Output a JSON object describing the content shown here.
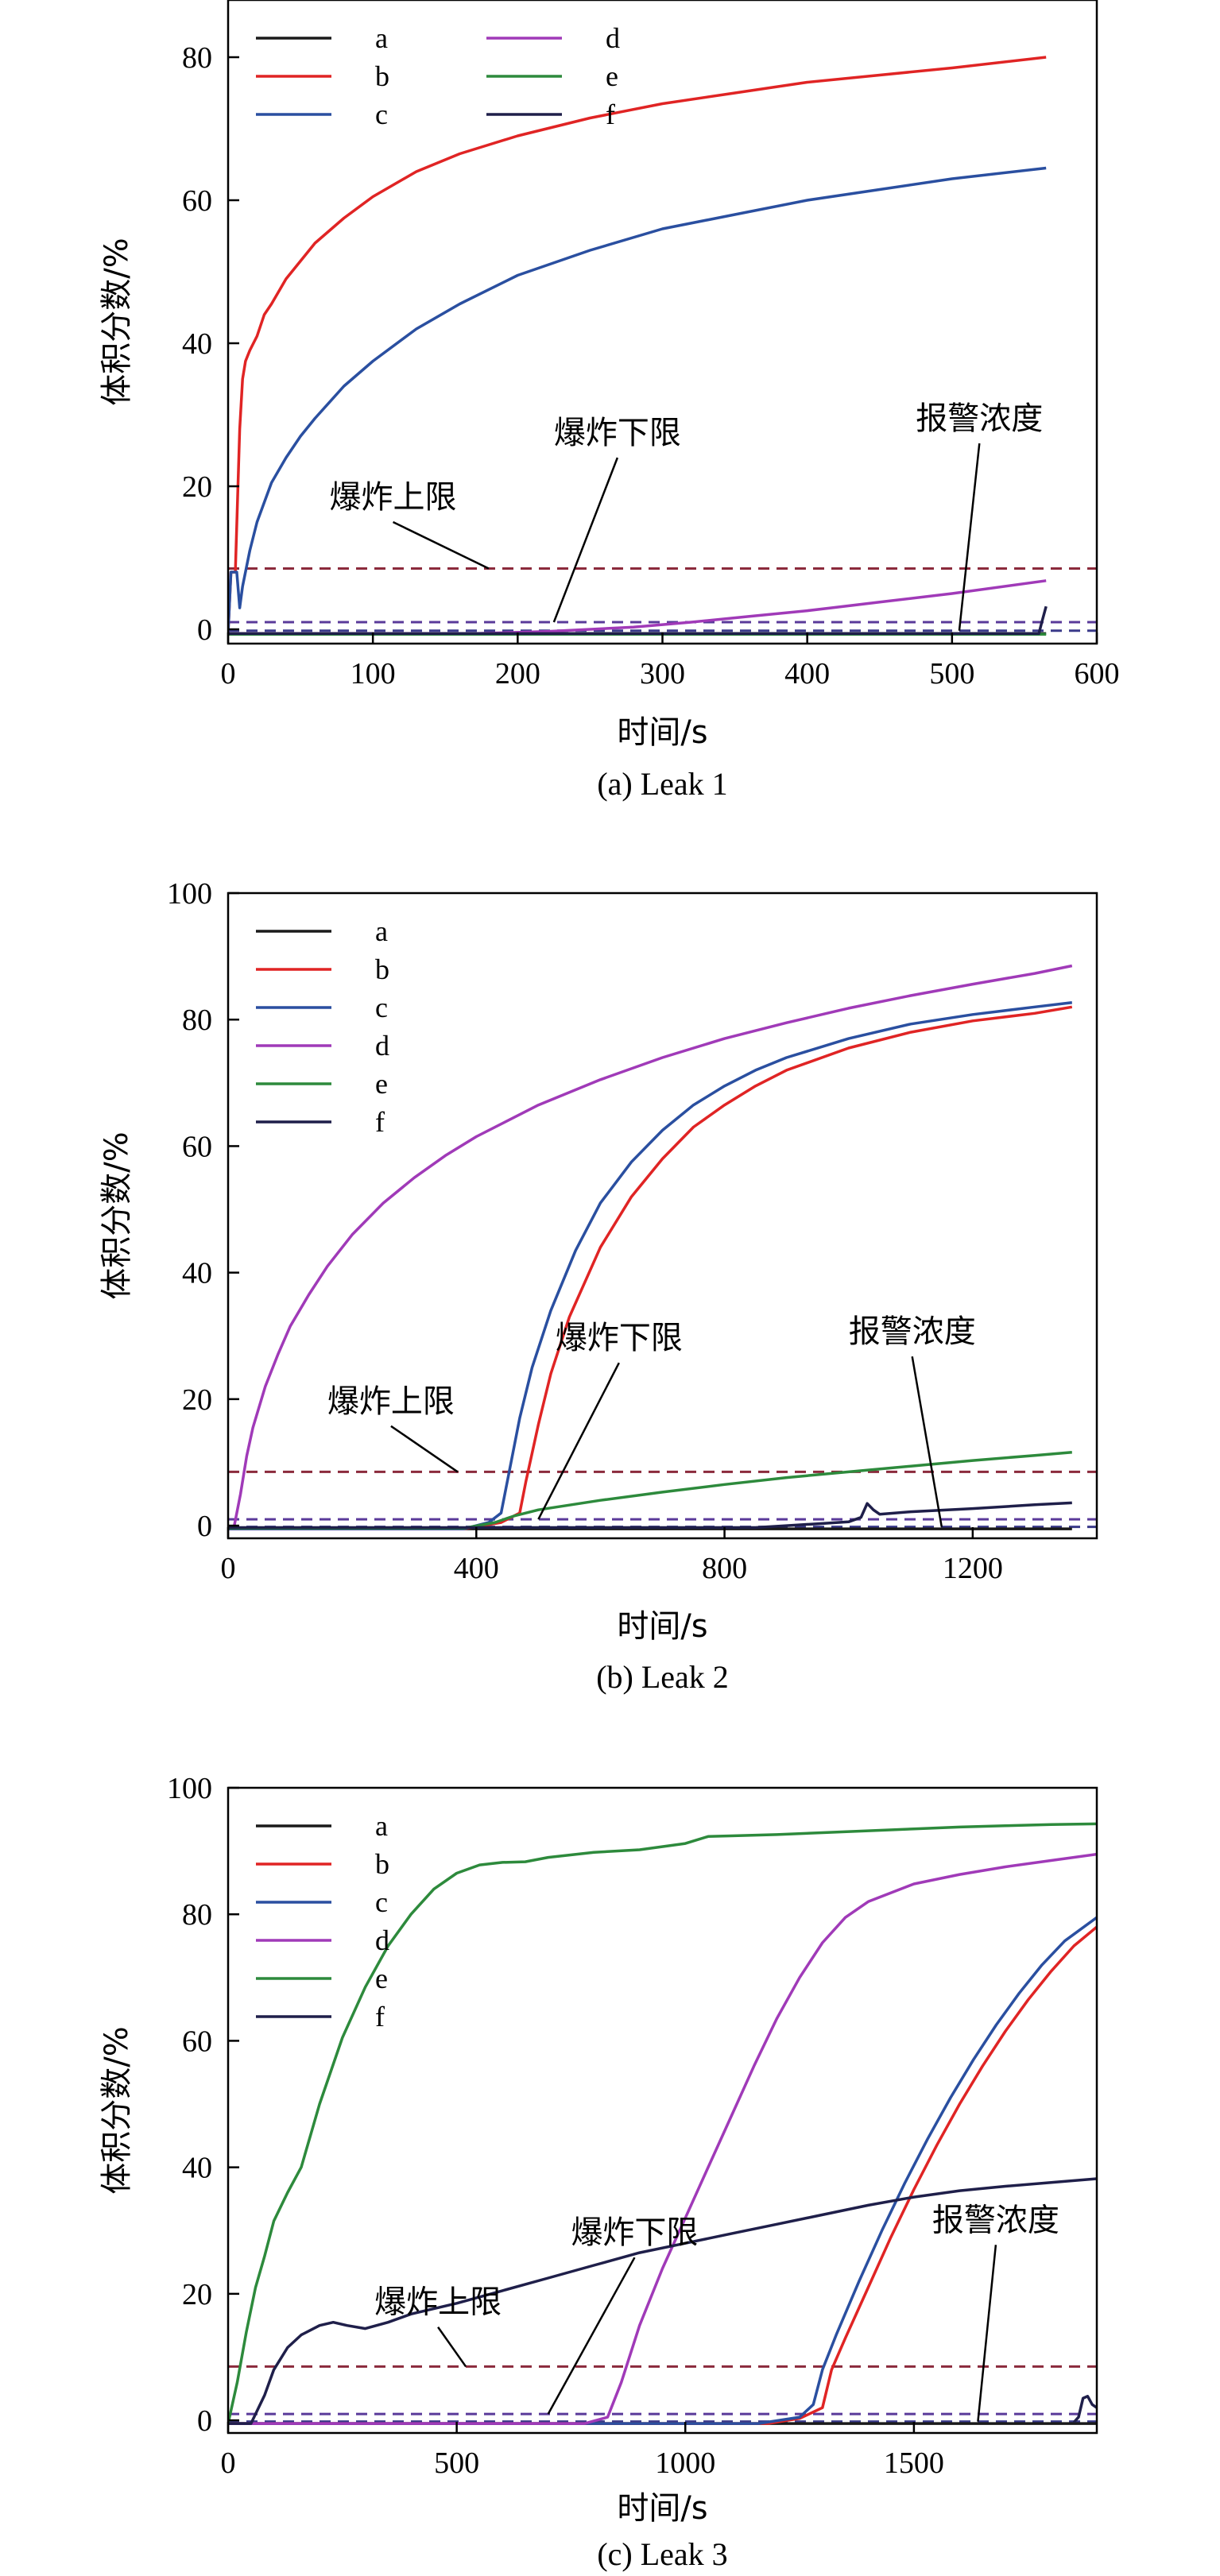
{
  "chart_data": [
    {
      "type": "line",
      "caption": "(a) Leak 1",
      "xlabel": "时间/s",
      "ylabel": "体积分数/%",
      "xlim": [
        0,
        600
      ],
      "ylim": [
        -2,
        88
      ],
      "xticks": [
        0,
        100,
        200,
        300,
        400,
        500,
        600
      ],
      "yticks": [
        0,
        20,
        40,
        60,
        80
      ],
      "legend": {
        "columns": 2,
        "placement": "top-left"
      },
      "series": [
        {
          "name": "a",
          "color": "#1a1a1a",
          "x": [
            0,
            565
          ],
          "y": [
            -0.6,
            -0.6
          ]
        },
        {
          "name": "b",
          "color": "#e02424",
          "x": [
            0,
            2,
            5,
            8,
            10,
            12,
            15,
            20,
            25,
            30,
            40,
            50,
            60,
            80,
            100,
            130,
            160,
            200,
            250,
            300,
            350,
            400,
            450,
            500,
            565
          ],
          "y": [
            -0.5,
            8,
            8,
            28,
            35,
            37.5,
            39,
            41,
            44,
            45.5,
            49,
            51.5,
            54,
            57.5,
            60.5,
            64,
            66.5,
            69,
            71.5,
            73.5,
            75,
            76.5,
            77.5,
            78.5,
            80
          ]
        },
        {
          "name": "c",
          "color": "#2a4fa0",
          "x": [
            0,
            2,
            4,
            6,
            8,
            10,
            15,
            20,
            30,
            40,
            50,
            60,
            80,
            100,
            130,
            160,
            200,
            250,
            300,
            350,
            400,
            450,
            500,
            565
          ],
          "y": [
            -0.5,
            8,
            8,
            8,
            3,
            6,
            11,
            15,
            20.5,
            24,
            27,
            29.5,
            34,
            37.5,
            42,
            45.5,
            49.5,
            53,
            56,
            58,
            60,
            61.5,
            63,
            64.5
          ]
        },
        {
          "name": "d",
          "color": "#a03ab8",
          "x": [
            0,
            170,
            220,
            280,
            320,
            360,
            400,
            450,
            500,
            565
          ],
          "y": [
            -0.6,
            -0.6,
            -0.3,
            0.3,
            1,
            1.8,
            2.6,
            3.8,
            5,
            6.8
          ]
        },
        {
          "name": "e",
          "color": "#2d8a3c",
          "x": [
            0,
            565
          ],
          "y": [
            -0.7,
            -0.7
          ]
        },
        {
          "name": "f",
          "color": "#1f1f4a",
          "x": [
            0,
            560,
            562,
            565
          ],
          "y": [
            -0.6,
            -0.6,
            1,
            3.2
          ]
        }
      ],
      "hlines": [
        {
          "y": 8.5,
          "color": "#8b2a3c"
        },
        {
          "y": 1,
          "color": "#5a3a9a"
        },
        {
          "y": -0.2,
          "color": "#3a3a8a"
        }
      ],
      "annotations": [
        {
          "text": "爆炸上限",
          "at": [
            180,
            8.5
          ],
          "text_at": [
            70,
            17
          ],
          "anchor": "start"
        },
        {
          "text": "爆炸下限",
          "at": [
            225,
            1
          ],
          "text_at": [
            225,
            26
          ],
          "anchor": "start"
        },
        {
          "text": "报警浓度",
          "at": [
            505,
            -0.2
          ],
          "text_at": [
            475,
            28
          ],
          "anchor": "start"
        }
      ]
    },
    {
      "type": "line",
      "caption": "(b) Leak 2",
      "xlabel": "时间/s",
      "ylabel": "体积分数/%",
      "xlim": [
        0,
        1400
      ],
      "ylim": [
        -2,
        100
      ],
      "xticks": [
        0,
        400,
        800,
        1200
      ],
      "yticks": [
        0,
        20,
        40,
        60,
        80,
        100
      ],
      "legend": {
        "columns": 1,
        "placement": "top-left"
      },
      "series": [
        {
          "name": "a",
          "color": "#1a1a1a",
          "x": [
            0,
            1360
          ],
          "y": [
            -0.5,
            -0.5
          ]
        },
        {
          "name": "b",
          "color": "#e02424",
          "x": [
            0,
            380,
            440,
            470,
            480,
            500,
            520,
            550,
            600,
            650,
            700,
            750,
            800,
            850,
            900,
            1000,
            1100,
            1200,
            1300,
            1360
          ],
          "y": [
            -0.5,
            -0.5,
            0.5,
            2,
            7,
            16,
            24,
            33,
            44,
            52,
            58,
            63,
            66.5,
            69.5,
            72,
            75.5,
            78,
            79.8,
            81,
            82
          ]
        },
        {
          "name": "c",
          "color": "#2a4fa0",
          "x": [
            0,
            380,
            420,
            440,
            450,
            470,
            490,
            520,
            560,
            600,
            650,
            700,
            750,
            800,
            850,
            900,
            1000,
            1100,
            1200,
            1300,
            1360
          ],
          "y": [
            -0.5,
            -0.5,
            0.5,
            2,
            7,
            17,
            25,
            34,
            43.5,
            51,
            57.5,
            62.5,
            66.5,
            69.5,
            72,
            74,
            77,
            79.3,
            80.8,
            82,
            82.7
          ]
        },
        {
          "name": "d",
          "color": "#a03ab8",
          "x": [
            0,
            10,
            20,
            30,
            40,
            60,
            80,
            100,
            130,
            160,
            200,
            250,
            300,
            350,
            400,
            500,
            600,
            700,
            800,
            900,
            1000,
            1100,
            1200,
            1300,
            1360
          ],
          "y": [
            -0.5,
            0,
            5,
            11,
            15.5,
            22,
            27,
            31.5,
            36.5,
            41,
            46,
            51,
            55,
            58.5,
            61.5,
            66.5,
            70.5,
            74,
            77,
            79.5,
            81.8,
            83.8,
            85.6,
            87.3,
            88.5
          ]
        },
        {
          "name": "e",
          "color": "#2d8a3c",
          "x": [
            0,
            380,
            430,
            460,
            500,
            600,
            700,
            800,
            900,
            1000,
            1100,
            1200,
            1300,
            1360
          ],
          "y": [
            -0.4,
            -0.4,
            0.5,
            1.5,
            2.5,
            4,
            5.3,
            6.5,
            7.6,
            8.5,
            9.4,
            10.3,
            11.1,
            11.6
          ]
        },
        {
          "name": "f",
          "color": "#1f1f4a",
          "x": [
            0,
            850,
            900,
            950,
            1000,
            1020,
            1030,
            1040,
            1050,
            1100,
            1200,
            1300,
            1360
          ],
          "y": [
            -0.3,
            -0.3,
            0,
            0.3,
            0.6,
            1.3,
            3.5,
            2.5,
            1.8,
            2.2,
            2.7,
            3.3,
            3.6
          ]
        }
      ],
      "hlines": [
        {
          "y": 8.5,
          "color": "#8b2a3c"
        },
        {
          "y": 1,
          "color": "#5a3a9a"
        },
        {
          "y": -0.2,
          "color": "#3a3a8a"
        }
      ],
      "annotations": [
        {
          "text": "爆炸上限",
          "at": [
            370,
            8.5
          ],
          "text_at": [
            160,
            18
          ],
          "anchor": "start"
        },
        {
          "text": "爆炸下限",
          "at": [
            500,
            1
          ],
          "text_at": [
            630,
            28
          ],
          "anchor": "middle"
        },
        {
          "text": "报警浓度",
          "at": [
            1150,
            -0.2
          ],
          "text_at": [
            1000,
            29
          ],
          "anchor": "start"
        }
      ]
    },
    {
      "type": "line",
      "caption": "(c) Leak 3",
      "xlabel": "时间/s",
      "ylabel": "体积分数/%",
      "xlim": [
        0,
        1900
      ],
      "ylim": [
        -2,
        100
      ],
      "xticks": [
        0,
        500,
        1000,
        1500
      ],
      "yticks": [
        0,
        20,
        40,
        60,
        80,
        100
      ],
      "legend": {
        "columns": 1,
        "placement": "top-left"
      },
      "series": [
        {
          "name": "a",
          "color": "#1a1a1a",
          "x": [
            0,
            1900
          ],
          "y": [
            -0.5,
            -0.5
          ]
        },
        {
          "name": "b",
          "color": "#e02424",
          "x": [
            0,
            1180,
            1250,
            1300,
            1320,
            1350,
            1400,
            1450,
            1500,
            1550,
            1600,
            1650,
            1700,
            1750,
            1800,
            1850,
            1900
          ],
          "y": [
            -0.5,
            -0.5,
            0.3,
            2,
            8,
            13,
            21,
            29,
            36.5,
            43.5,
            50,
            56,
            61.5,
            66.5,
            71,
            75,
            78
          ]
        },
        {
          "name": "c",
          "color": "#2a4fa0",
          "x": [
            0,
            1160,
            1250,
            1280,
            1300,
            1330,
            1380,
            1430,
            1480,
            1530,
            1580,
            1630,
            1680,
            1730,
            1780,
            1830,
            1900
          ],
          "y": [
            -0.5,
            -0.5,
            0.5,
            2.5,
            8,
            13.5,
            22,
            30,
            37.5,
            44.5,
            51,
            57,
            62.5,
            67.5,
            72,
            75.8,
            79.5
          ]
        },
        {
          "name": "d",
          "color": "#a03ab8",
          "x": [
            0,
            780,
            830,
            860,
            900,
            950,
            1000,
            1050,
            1100,
            1150,
            1200,
            1250,
            1300,
            1350,
            1400,
            1500,
            1600,
            1700,
            1800,
            1900
          ],
          "y": [
            -0.5,
            -0.5,
            0.5,
            6,
            15,
            24,
            32,
            40,
            48,
            56,
            63.5,
            70,
            75.5,
            79.5,
            82,
            84.8,
            86.3,
            87.5,
            88.5,
            89.5
          ]
        },
        {
          "name": "e",
          "color": "#2d8a3c",
          "x": [
            0,
            20,
            40,
            60,
            80,
            100,
            130,
            160,
            200,
            250,
            300,
            350,
            400,
            450,
            500,
            550,
            600,
            650,
            700,
            800,
            900,
            1000,
            1050,
            1100,
            1200,
            1300,
            1400,
            1500,
            1600,
            1700,
            1800,
            1900
          ],
          "y": [
            -0.5,
            6,
            14,
            21,
            26,
            31.5,
            36,
            40,
            50,
            60.5,
            68.5,
            75,
            80,
            84,
            86.5,
            87.8,
            88.2,
            88.3,
            89,
            89.8,
            90.2,
            91.2,
            92.3,
            92.4,
            92.6,
            92.9,
            93.2,
            93.5,
            93.8,
            94,
            94.2,
            94.3
          ]
        },
        {
          "name": "f",
          "color": "#1f1f4a",
          "x": [
            0,
            50,
            80,
            100,
            130,
            160,
            200,
            230,
            260,
            300,
            350,
            400,
            500,
            600,
            700,
            800,
            900,
            1000,
            1100,
            1200,
            1300,
            1400,
            1500,
            1600,
            1700,
            1800,
            1900
          ],
          "y": [
            -0.5,
            -0.5,
            4,
            8,
            11.5,
            13.5,
            15,
            15.5,
            15,
            14.5,
            15.5,
            16.8,
            18.5,
            20.5,
            22.5,
            24.5,
            26.5,
            28,
            29.5,
            31,
            32.5,
            34,
            35.3,
            36.3,
            37,
            37.6,
            38.2
          ]
        },
        {
          "name": "",
          "color": "#1f1f4a",
          "x": [
            1850,
            1860,
            1870,
            1880,
            1890,
            1900
          ],
          "y": [
            -0.3,
            0.5,
            3.5,
            3.8,
            2.5,
            2
          ]
        }
      ],
      "hlines": [
        {
          "y": 8.5,
          "color": "#8b2a3c"
        },
        {
          "y": 1,
          "color": "#5a3a9a"
        },
        {
          "y": -0.2,
          "color": "#3a3a8a"
        }
      ],
      "annotations": [
        {
          "text": "爆炸上限",
          "at": [
            520,
            8.5
          ],
          "text_at": [
            320,
            17
          ],
          "anchor": "start"
        },
        {
          "text": "爆炸下限",
          "at": [
            700,
            1
          ],
          "text_at": [
            750,
            28
          ],
          "anchor": "start"
        },
        {
          "text": "报警浓度",
          "at": [
            1640,
            -0.2
          ],
          "text_at": [
            1540,
            30
          ],
          "anchor": "start"
        }
      ]
    }
  ]
}
